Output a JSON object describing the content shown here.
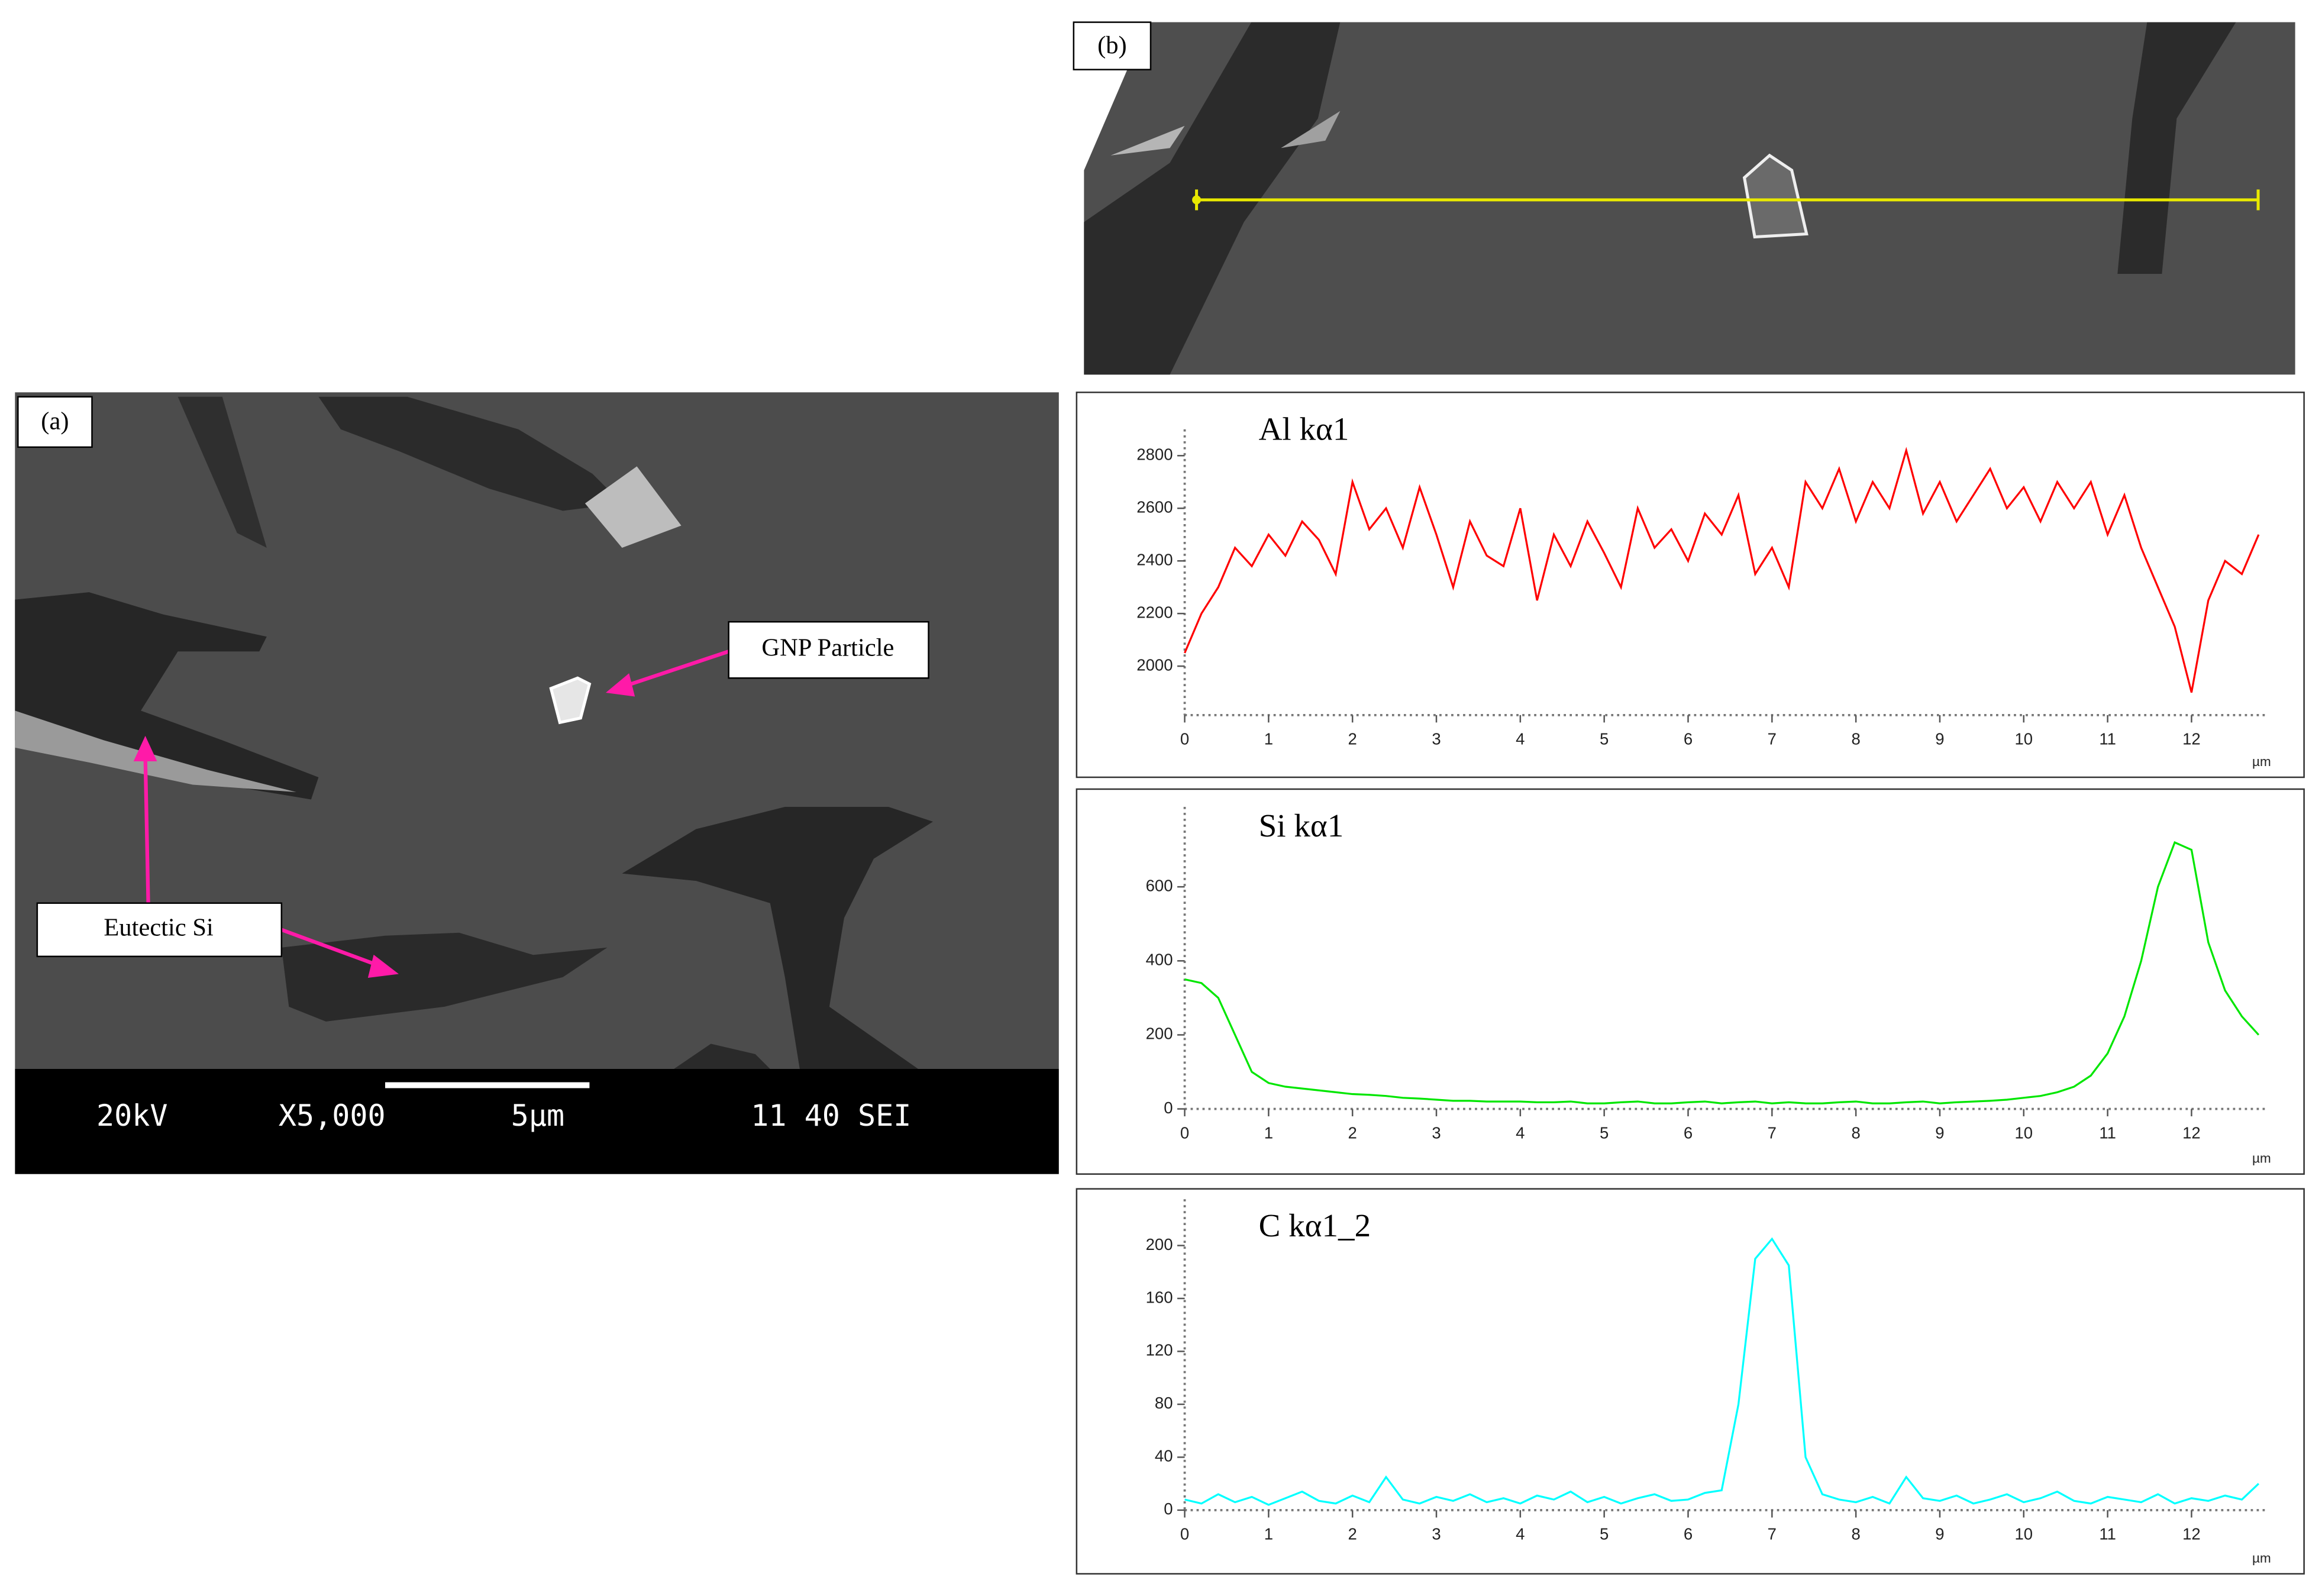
{
  "panels": {
    "a": {
      "label": "(a)",
      "annotations": [
        "GNP Particle",
        "Eutectic Si"
      ],
      "info_bar": [
        "20kV",
        "X5,000",
        "5µm",
        "11 40 SEI"
      ]
    },
    "b": {
      "label": "(b)"
    }
  },
  "chart_data": [
    {
      "type": "line",
      "title": "Al kα1",
      "x_label": "µm",
      "color": "#ff0000",
      "x": [
        0,
        0.2,
        0.4,
        0.6,
        0.8,
        1,
        1.2,
        1.4,
        1.6,
        1.8,
        2,
        2.2,
        2.4,
        2.6,
        2.8,
        3,
        3.2,
        3.4,
        3.6,
        3.8,
        4,
        4.2,
        4.4,
        4.6,
        4.8,
        5,
        5.2,
        5.4,
        5.6,
        5.8,
        6,
        6.2,
        6.4,
        6.6,
        6.8,
        7,
        7.2,
        7.4,
        7.6,
        7.8,
        8,
        8.2,
        8.4,
        8.6,
        8.8,
        9,
        9.2,
        9.4,
        9.6,
        9.8,
        10,
        10.2,
        10.4,
        10.6,
        10.8,
        11,
        11.2,
        11.4,
        11.6,
        11.8,
        12,
        12.2,
        12.4,
        12.6,
        12.8
      ],
      "values": [
        2050,
        2200,
        2300,
        2450,
        2380,
        2500,
        2420,
        2550,
        2480,
        2350,
        2700,
        2520,
        2600,
        2450,
        2680,
        2500,
        2300,
        2550,
        2420,
        2380,
        2600,
        2250,
        2500,
        2380,
        2550,
        2430,
        2300,
        2600,
        2450,
        2520,
        2400,
        2580,
        2500,
        2650,
        2350,
        2450,
        2300,
        2700,
        2600,
        2750,
        2550,
        2700,
        2600,
        2820,
        2580,
        2700,
        2550,
        2650,
        2750,
        2600,
        2680,
        2550,
        2700,
        2600,
        2700,
        2500,
        2650,
        2450,
        2300,
        2150,
        1900,
        2250,
        2400,
        2350,
        2500
      ],
      "xlim": [
        0,
        12.9
      ],
      "xticks": [
        0,
        1,
        2,
        3,
        4,
        5,
        6,
        7,
        8,
        9,
        10,
        11,
        12
      ],
      "ylim": [
        1814,
        2900
      ],
      "yticks": [
        2000,
        2200,
        2400,
        2600,
        2800
      ],
      "grid": false
    },
    {
      "type": "line",
      "title": "Si kα1",
      "x_label": "µm",
      "color": "#00e600",
      "x": [
        0,
        0.2,
        0.4,
        0.6,
        0.8,
        1,
        1.2,
        1.4,
        1.6,
        1.8,
        2,
        2.2,
        2.4,
        2.6,
        2.8,
        3,
        3.2,
        3.4,
        3.6,
        3.8,
        4,
        4.2,
        4.4,
        4.6,
        4.8,
        5,
        5.2,
        5.4,
        5.6,
        5.8,
        6,
        6.2,
        6.4,
        6.6,
        6.8,
        7,
        7.2,
        7.4,
        7.6,
        7.8,
        8,
        8.2,
        8.4,
        8.6,
        8.8,
        9,
        9.2,
        9.4,
        9.6,
        9.8,
        10,
        10.2,
        10.4,
        10.6,
        10.8,
        11,
        11.2,
        11.4,
        11.6,
        11.8,
        12,
        12.2,
        12.4,
        12.6,
        12.8
      ],
      "values": [
        350,
        340,
        300,
        200,
        100,
        70,
        60,
        55,
        50,
        45,
        40,
        38,
        35,
        30,
        28,
        25,
        22,
        22,
        20,
        20,
        20,
        18,
        18,
        20,
        15,
        15,
        18,
        20,
        15,
        15,
        18,
        20,
        15,
        18,
        20,
        15,
        18,
        15,
        15,
        18,
        20,
        15,
        15,
        18,
        20,
        15,
        18,
        20,
        22,
        25,
        30,
        35,
        45,
        60,
        90,
        150,
        250,
        400,
        600,
        720,
        700,
        450,
        320,
        250,
        200
      ],
      "xlim": [
        0,
        12.9
      ],
      "xticks": [
        0,
        1,
        2,
        3,
        4,
        5,
        6,
        7,
        8,
        9,
        10,
        11,
        12
      ],
      "ylim": [
        0,
        816
      ],
      "yticks": [
        0,
        200,
        400,
        600
      ],
      "grid": false
    },
    {
      "type": "line",
      "title": "C kα1_2",
      "x_label": "µm",
      "color": "#00ffff",
      "x": [
        0,
        0.2,
        0.4,
        0.6,
        0.8,
        1,
        1.2,
        1.4,
        1.6,
        1.8,
        2,
        2.2,
        2.4,
        2.6,
        2.8,
        3,
        3.2,
        3.4,
        3.6,
        3.8,
        4,
        4.2,
        4.4,
        4.6,
        4.8,
        5,
        5.2,
        5.4,
        5.6,
        5.8,
        6,
        6.2,
        6.4,
        6.6,
        6.8,
        7,
        7.2,
        7.4,
        7.6,
        7.8,
        8,
        8.2,
        8.4,
        8.6,
        8.8,
        9,
        9.2,
        9.4,
        9.6,
        9.8,
        10,
        10.2,
        10.4,
        10.6,
        10.8,
        11,
        11.2,
        11.4,
        11.6,
        11.8,
        12,
        12.2,
        12.4,
        12.6,
        12.8
      ],
      "values": [
        8,
        5,
        12,
        6,
        10,
        4,
        9,
        14,
        7,
        5,
        11,
        6,
        25,
        8,
        5,
        10,
        7,
        12,
        6,
        9,
        5,
        11,
        8,
        14,
        6,
        10,
        5,
        9,
        12,
        7,
        8,
        13,
        15,
        80,
        190,
        205,
        185,
        40,
        12,
        8,
        6,
        10,
        5,
        25,
        9,
        7,
        11,
        5,
        8,
        12,
        6,
        9,
        14,
        7,
        5,
        10,
        8,
        6,
        12,
        5,
        9,
        7,
        11,
        8,
        20
      ],
      "xlim": [
        0,
        12.9
      ],
      "xticks": [
        0,
        1,
        2,
        3,
        4,
        5,
        6,
        7,
        8,
        9,
        10,
        11,
        12
      ],
      "ylim": [
        0,
        235
      ],
      "yticks": [
        0,
        40,
        80,
        120,
        160,
        200
      ],
      "grid": false
    }
  ]
}
